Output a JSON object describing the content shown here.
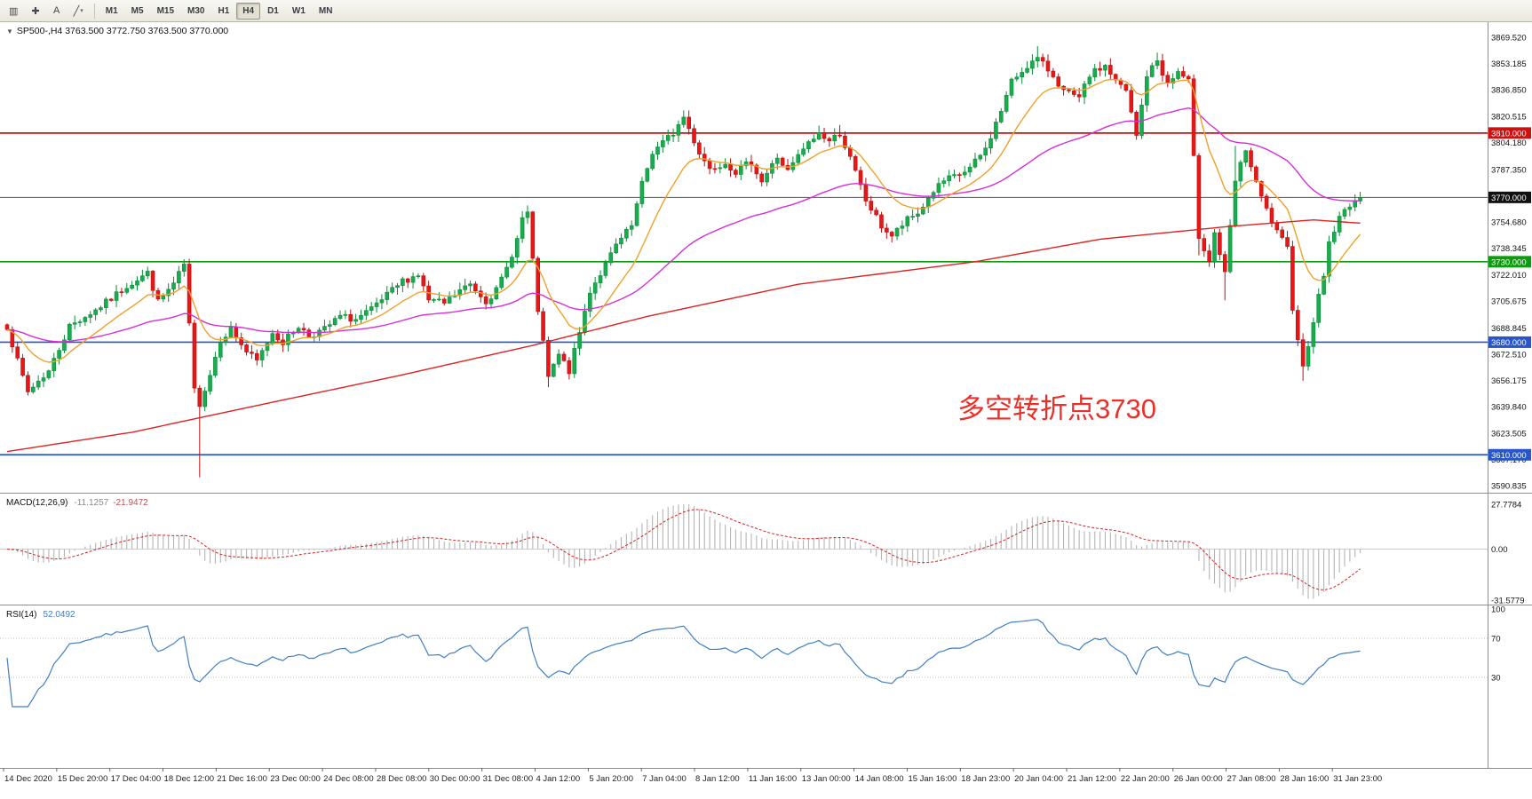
{
  "toolbar": {
    "tools": [
      {
        "name": "chart-window-icon",
        "glyph": "▥"
      },
      {
        "name": "crosshair-tool-icon",
        "glyph": "✚"
      },
      {
        "name": "text-label-tool-icon",
        "glyph": "A"
      },
      {
        "name": "trendline-tool-icon",
        "glyph": "╱",
        "caret": "▾"
      }
    ],
    "timeframes": [
      "M1",
      "M5",
      "M15",
      "M30",
      "H1",
      "H4",
      "D1",
      "W1",
      "MN"
    ],
    "active_timeframe": "H4"
  },
  "chart_header": {
    "marker": "▼",
    "symbol_line": "SP500-,H4  3763.500 3772.750 3763.500 3770.000"
  },
  "annotation": {
    "text": "多空转折点3730",
    "color": "#e8312a"
  },
  "chart_data": {
    "type": "candlestick",
    "symbol": "SP500-",
    "timeframe": "H4",
    "ohlc_display": {
      "open": "3763.500",
      "high": "3772.750",
      "low": "3763.500",
      "close": "3770.000"
    },
    "num_candles": 261,
    "price_axis_ticks": [
      "3869.520",
      "3853.185",
      "3836.850",
      "3820.515",
      "3804.180",
      "3787.350",
      "3754.680",
      "3738.345",
      "3722.010",
      "3705.675",
      "3688.845",
      "3672.510",
      "3656.175",
      "3639.840",
      "3623.505",
      "3607.170",
      "3590.835"
    ],
    "price_range": {
      "top": 3869.52,
      "bottom": 3590.835
    },
    "current_price": {
      "value": 3770.0,
      "label": "3770.000",
      "badge_color": "#111111",
      "line_color": "#555555"
    },
    "hlines": [
      {
        "price": 3810.0,
        "label": "3810.000",
        "color": "#cc1111"
      },
      {
        "price": 3730.0,
        "label": "3730.000",
        "color": "#0f9b0f"
      },
      {
        "price": 3680.0,
        "label": "3680.000",
        "color": "#2855c8"
      },
      {
        "price": 3610.0,
        "label": "3610.000",
        "color": "#2855c8"
      }
    ],
    "price_path": [
      [
        0,
        3690
      ],
      [
        2,
        3668
      ],
      [
        4,
        3649
      ],
      [
        6,
        3656
      ],
      [
        8,
        3662
      ],
      [
        12,
        3690
      ],
      [
        17,
        3700
      ],
      [
        20,
        3707
      ],
      [
        23,
        3715
      ],
      [
        27,
        3723
      ],
      [
        29,
        3705
      ],
      [
        32,
        3716
      ],
      [
        34,
        3728
      ],
      [
        35,
        3690
      ],
      [
        36,
        3650
      ],
      [
        37,
        3642
      ],
      [
        39,
        3660
      ],
      [
        41,
        3682
      ],
      [
        43,
        3688
      ],
      [
        46,
        3674
      ],
      [
        48,
        3668
      ],
      [
        51,
        3686
      ],
      [
        53,
        3680
      ],
      [
        56,
        3690
      ],
      [
        58,
        3684
      ],
      [
        61,
        3688
      ],
      [
        64,
        3696
      ],
      [
        67,
        3694
      ],
      [
        70,
        3700
      ],
      [
        74,
        3712
      ],
      [
        76,
        3718
      ],
      [
        79,
        3722
      ],
      [
        81,
        3706
      ],
      [
        84,
        3704
      ],
      [
        87,
        3712
      ],
      [
        89,
        3716
      ],
      [
        92,
        3706
      ],
      [
        94,
        3712
      ],
      [
        96,
        3726
      ],
      [
        98,
        3744
      ],
      [
        99,
        3757
      ],
      [
        100,
        3760
      ],
      [
        102,
        3700
      ],
      [
        104,
        3658
      ],
      [
        106,
        3672
      ],
      [
        108,
        3662
      ],
      [
        110,
        3686
      ],
      [
        112,
        3712
      ],
      [
        115,
        3728
      ],
      [
        117,
        3740
      ],
      [
        120,
        3752
      ],
      [
        122,
        3778
      ],
      [
        124,
        3798
      ],
      [
        126,
        3804
      ],
      [
        128,
        3810
      ],
      [
        130,
        3820
      ],
      [
        133,
        3798
      ],
      [
        135,
        3788
      ],
      [
        138,
        3792
      ],
      [
        140,
        3786
      ],
      [
        143,
        3792
      ],
      [
        145,
        3780
      ],
      [
        148,
        3795
      ],
      [
        150,
        3786
      ],
      [
        153,
        3800
      ],
      [
        156,
        3810
      ],
      [
        158,
        3805
      ],
      [
        160,
        3810
      ],
      [
        162,
        3794
      ],
      [
        165,
        3768
      ],
      [
        168,
        3752
      ],
      [
        170,
        3746
      ],
      [
        173,
        3756
      ],
      [
        175,
        3760
      ],
      [
        178,
        3774
      ],
      [
        180,
        3780
      ],
      [
        183,
        3784
      ],
      [
        185,
        3788
      ],
      [
        188,
        3800
      ],
      [
        191,
        3824
      ],
      [
        193,
        3842
      ],
      [
        196,
        3852
      ],
      [
        198,
        3856
      ],
      [
        201,
        3846
      ],
      [
        203,
        3836
      ],
      [
        206,
        3831
      ],
      [
        208,
        3846
      ],
      [
        211,
        3852
      ],
      [
        213,
        3842
      ],
      [
        215,
        3836
      ],
      [
        217,
        3808
      ],
      [
        219,
        3846
      ],
      [
        221,
        3855
      ],
      [
        223,
        3840
      ],
      [
        225,
        3848
      ],
      [
        227,
        3842
      ],
      [
        229,
        3746
      ],
      [
        231,
        3731
      ],
      [
        232,
        3748
      ],
      [
        234,
        3722
      ],
      [
        236,
        3780
      ],
      [
        238,
        3800
      ],
      [
        240,
        3778
      ],
      [
        242,
        3762
      ],
      [
        244,
        3748
      ],
      [
        246,
        3738
      ],
      [
        247,
        3702
      ],
      [
        249,
        3664
      ],
      [
        251,
        3694
      ],
      [
        253,
        3722
      ],
      [
        254,
        3742
      ],
      [
        256,
        3757
      ],
      [
        258,
        3766
      ],
      [
        260,
        3770
      ]
    ],
    "wick_lows": [
      [
        37,
        3596
      ],
      [
        104,
        3652
      ],
      [
        170,
        3742
      ],
      [
        229,
        3734
      ],
      [
        234,
        3706
      ],
      [
        249,
        3656
      ]
    ],
    "wick_highs": [
      [
        34,
        3731
      ],
      [
        100,
        3765
      ],
      [
        130,
        3823
      ],
      [
        160,
        3815
      ],
      [
        198,
        3864
      ],
      [
        221,
        3860
      ],
      [
        236,
        3802
      ]
    ],
    "noise_amplitude": 2.2,
    "ma_red_path": [
      [
        0,
        3612
      ],
      [
        24,
        3624
      ],
      [
        50,
        3642
      ],
      [
        75,
        3659
      ],
      [
        101,
        3678
      ],
      [
        123,
        3696
      ],
      [
        152,
        3716
      ],
      [
        186,
        3730
      ],
      [
        210,
        3744
      ],
      [
        235,
        3752
      ],
      [
        251,
        3756
      ],
      [
        260,
        3754
      ]
    ],
    "ma_periods": {
      "fast_orange": 13,
      "medium_magenta": 55
    },
    "colors": {
      "candle_up": "#18ad4c",
      "candle_up_border": "#0c8a3a",
      "candle_down": "#e81717",
      "candle_down_border": "#bb1010",
      "ma_red": "#dd2222",
      "ma_magenta": "#d52fd5",
      "ma_orange": "#efa12c",
      "macd_bar": "#b4b4b4",
      "macd_signal": "#d32222",
      "rsi_line": "#3f7fc1"
    },
    "macd": {
      "label": "MACD(12,26,9)",
      "value1": "-11.1257",
      "value2": "-21.9472",
      "fast": 12,
      "slow": 26,
      "signal": 9,
      "axis": [
        {
          "v": 27.7784,
          "label": "27.7784"
        },
        {
          "v": 0,
          "label": "0.00"
        },
        {
          "v": -31.5779,
          "label": "-31.5779"
        }
      ],
      "range": {
        "top": 27.7784,
        "bottom": -31.5779
      }
    },
    "rsi": {
      "label": "RSI(14)",
      "value": "52.0492",
      "period": 14,
      "axis": [
        {
          "v": 100,
          "label": "100"
        },
        {
          "v": 70,
          "label": "70"
        },
        {
          "v": 30,
          "label": "30"
        }
      ],
      "levels": [
        70,
        30
      ]
    },
    "x_labels": [
      "14 Dec 2020",
      "15 Dec 20:00",
      "17 Dec 04:00",
      "18 Dec 12:00",
      "21 Dec 16:00",
      "23 Dec 00:00",
      "24 Dec 08:00",
      "28 Dec 08:00",
      "30 Dec 00:00",
      "31 Dec 08:00",
      "4 Jan 12:00",
      "5 Jan 20:00",
      "7 Jan 04:00",
      "8 Jan 12:00",
      "11 Jan 16:00",
      "13 Jan 00:00",
      "14 Jan 08:00",
      "15 Jan 16:00",
      "18 Jan 23:00",
      "20 Jan 04:00",
      "21 Jan 12:00",
      "22 Jan 20:00",
      "26 Jan 00:00",
      "27 Jan 08:00",
      "28 Jan 16:00",
      "31 Jan 23:00"
    ]
  }
}
